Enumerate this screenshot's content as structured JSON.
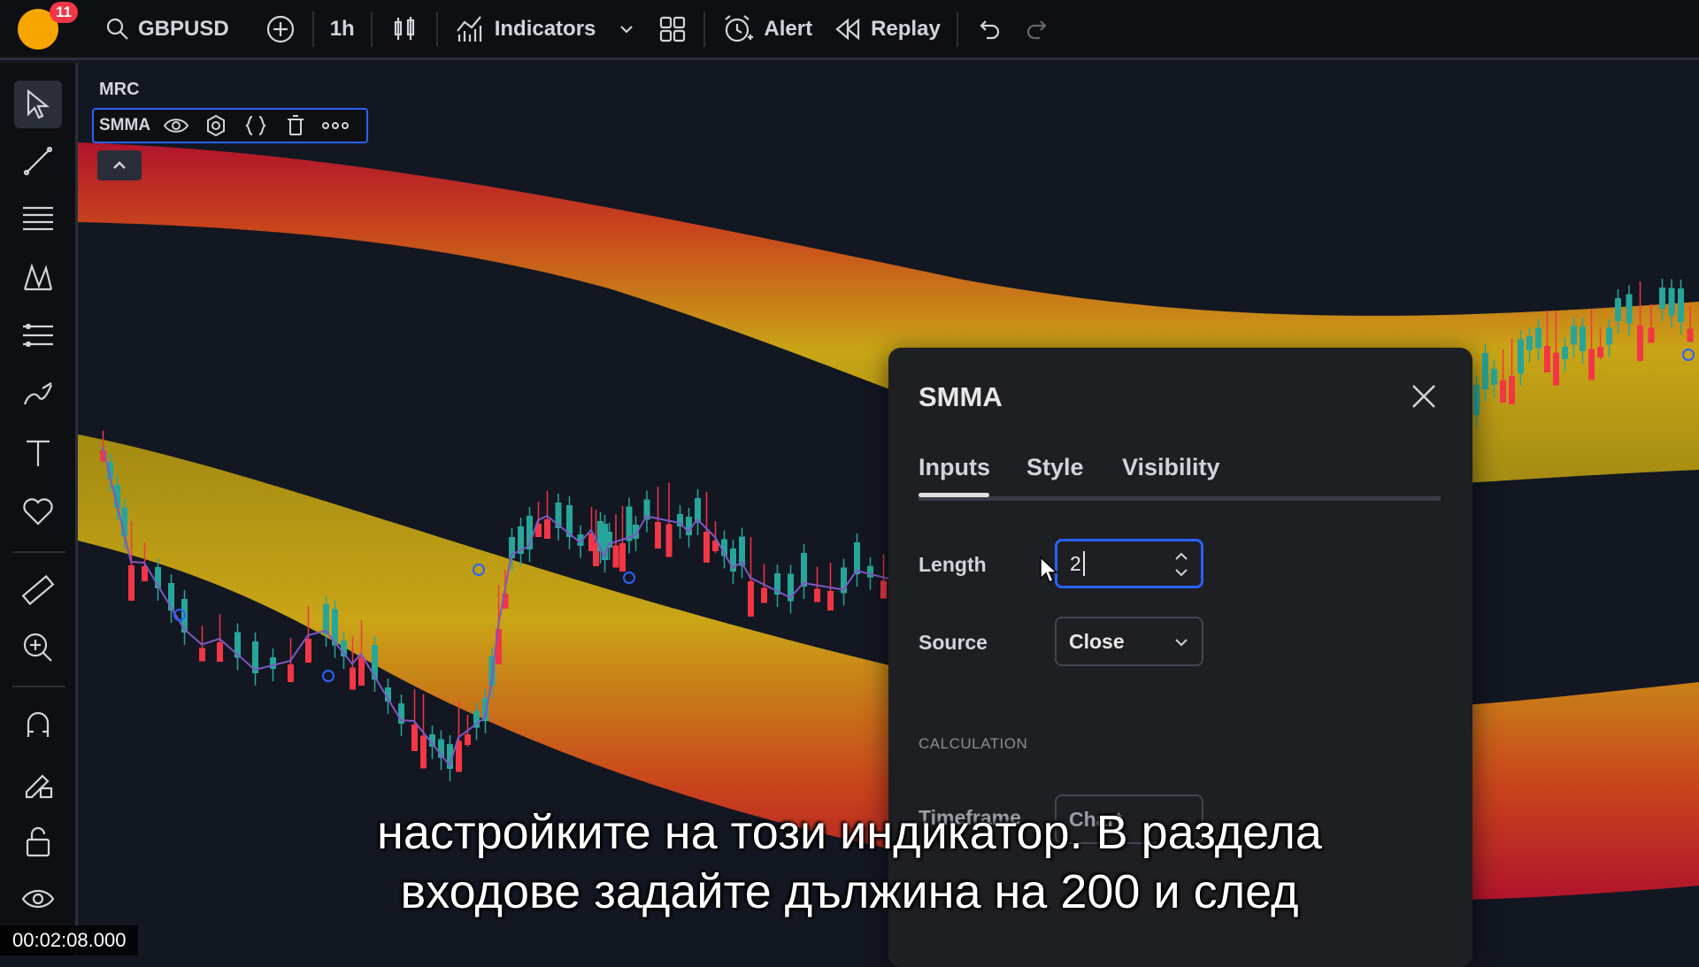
{
  "toolbar": {
    "notification_count": "11",
    "symbol": "GBPUSD",
    "interval": "1h",
    "indicators_label": "Indicators",
    "alert_label": "Alert",
    "replay_label": "Replay"
  },
  "chart": {
    "symbol_label": "MRC",
    "indicator_name": "SMMA"
  },
  "dialog": {
    "title": "SMMA",
    "tabs": [
      "Inputs",
      "Style",
      "Visibility"
    ],
    "active_tab": "Inputs",
    "length_label": "Length",
    "length_value": "2",
    "source_label": "Source",
    "source_value": "Close",
    "section_calculation": "CALCULATION",
    "timeframe_label": "Timeframe",
    "timeframe_value": "Chart"
  },
  "subtitles": {
    "line1": "настройките на този индикатор. В раздела",
    "line2": "входове задайте дължина на 200 и след"
  },
  "video": {
    "timecode": "00:02:08.000"
  },
  "colors": {
    "bull": "#26a69a",
    "bear": "#f23645",
    "accent": "#2962ff",
    "band_outer": "#b0142c",
    "band_inner": "#c9a516"
  }
}
